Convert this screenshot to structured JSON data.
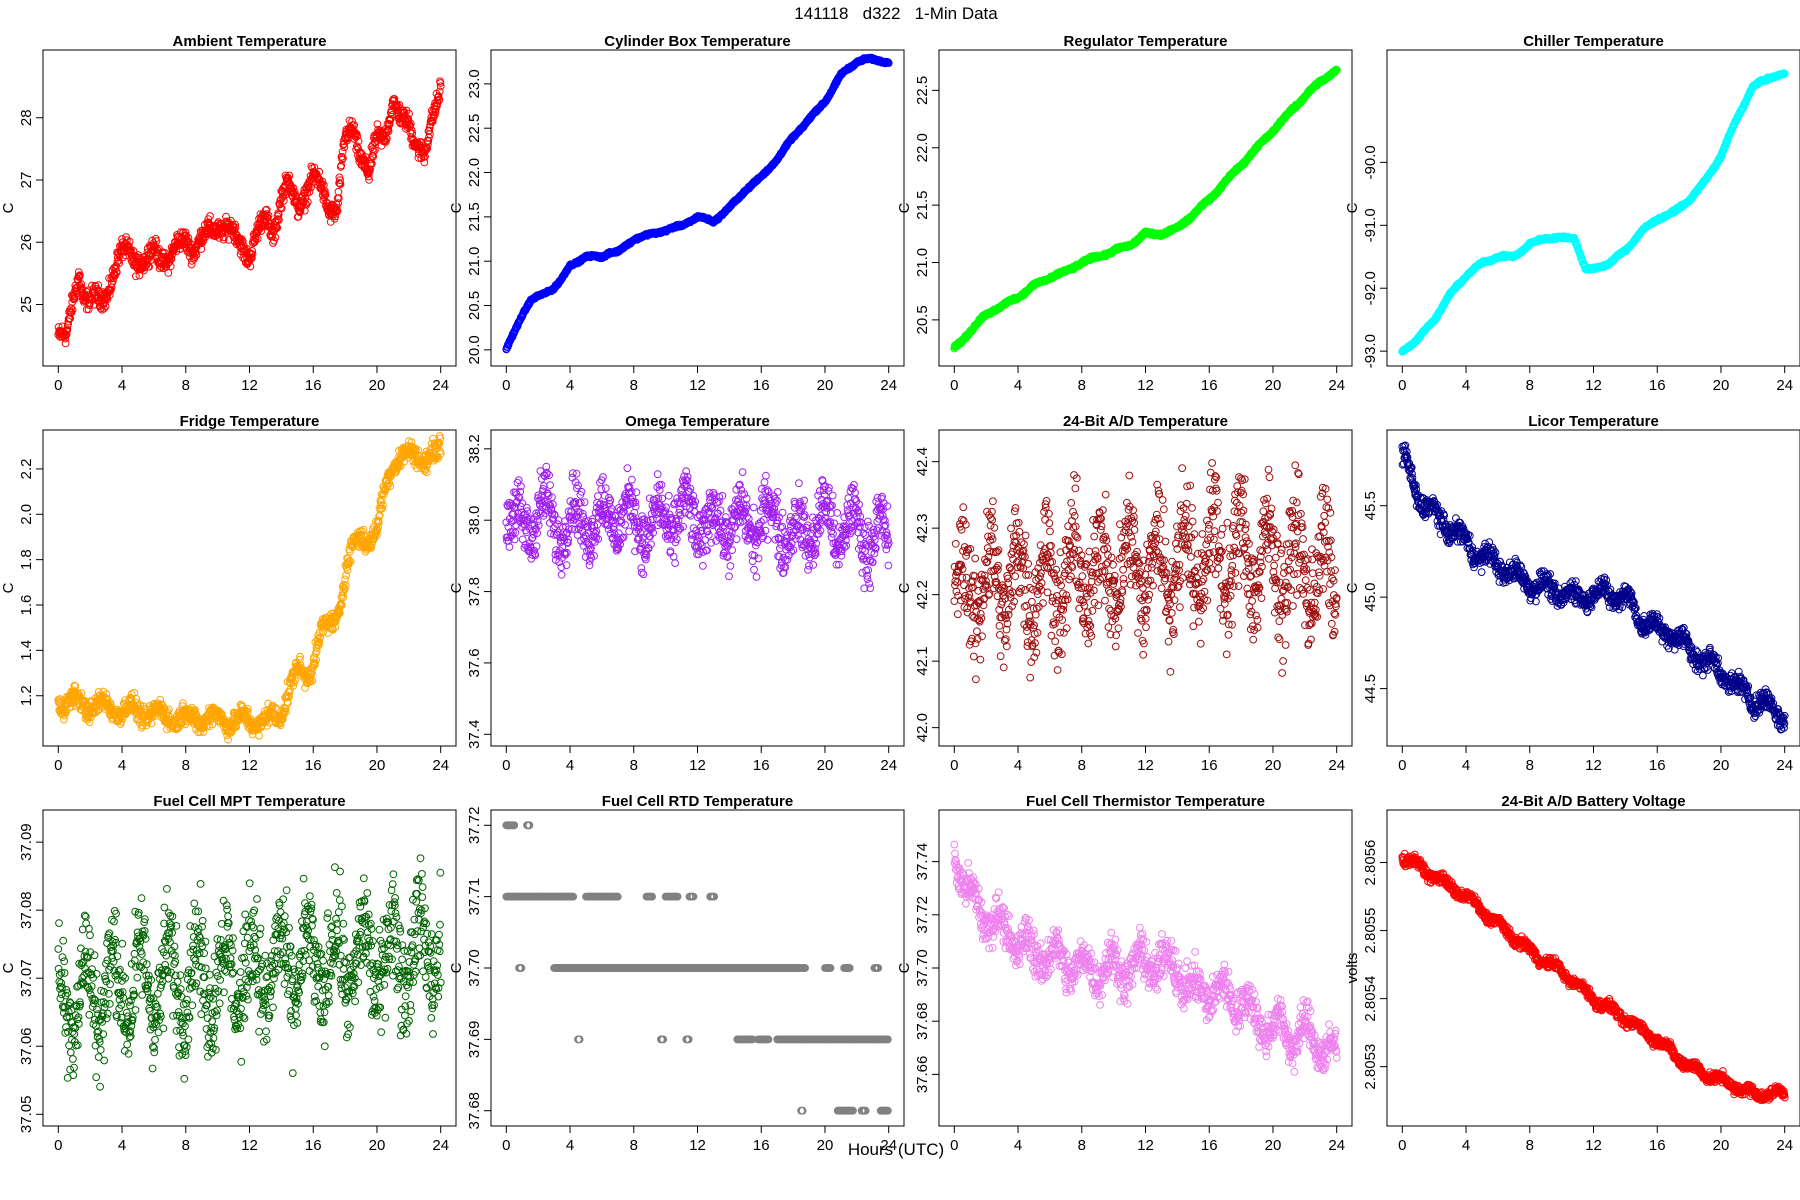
{
  "figure": {
    "title": "141118   d322   1-Min Data",
    "xlabel": "Hours (UTC)"
  },
  "chart_data": [
    {
      "type": "scatter",
      "title": "Ambient Temperature",
      "ylabel": "C",
      "color": "#ff0000",
      "xlim": [
        0,
        24
      ],
      "ylim": [
        24.2,
        28.9
      ],
      "xticks": [
        0,
        4,
        8,
        12,
        16,
        20,
        24
      ],
      "yticks": [
        25,
        26,
        27,
        28
      ],
      "ytick_labels": [
        "25",
        "26",
        "27",
        "28"
      ],
      "x": [
        0,
        0.5,
        1,
        1.3,
        1.6,
        2,
        2.5,
        3,
        3.5,
        4,
        4.5,
        5,
        5.5,
        6,
        6.5,
        7,
        7.5,
        8,
        8.5,
        9,
        9.5,
        10,
        10.5,
        11,
        11.5,
        12,
        12.5,
        13,
        13.5,
        14,
        14.5,
        15,
        15.5,
        16,
        16.5,
        17,
        17.5,
        18,
        18.5,
        19,
        19.5,
        20,
        20.5,
        21,
        21.5,
        22,
        22.5,
        23,
        23.5,
        24
      ],
      "y": [
        24.5,
        24.4,
        25.2,
        25.6,
        25.1,
        25.0,
        25.1,
        25.2,
        25.5,
        25.8,
        25.9,
        25.7,
        25.6,
        25.9,
        25.8,
        25.7,
        25.9,
        26.1,
        25.9,
        26.0,
        26.2,
        26.3,
        26.2,
        26.1,
        26.0,
        25.8,
        26.1,
        26.4,
        26.2,
        26.7,
        26.9,
        26.6,
        26.8,
        27.0,
        26.9,
        26.6,
        26.5,
        27.6,
        27.9,
        27.4,
        27.0,
        27.7,
        27.8,
        28.2,
        27.9,
        28.0,
        27.6,
        27.3,
        28.0,
        28.6
      ],
      "spread": 0.25
    },
    {
      "type": "scatter",
      "title": "Cylinder Box Temperature",
      "ylabel": "C",
      "color": "#0000ff",
      "xlim": [
        0,
        24
      ],
      "ylim": [
        19.95,
        23.25
      ],
      "xticks": [
        0,
        4,
        8,
        12,
        16,
        20,
        24
      ],
      "yticks": [
        20.0,
        20.5,
        21.0,
        21.5,
        22.0,
        22.5,
        23.0
      ],
      "ytick_labels": [
        "20.0",
        "20.5",
        "21.0",
        "21.5",
        "22.0",
        "22.5",
        "23.0"
      ],
      "x": [
        0,
        0.5,
        1,
        1.5,
        2,
        3,
        3.5,
        4,
        5,
        6,
        6.5,
        7,
        8,
        9,
        10,
        11,
        12,
        13,
        14,
        15,
        16,
        17,
        18,
        19,
        20,
        21,
        22,
        22.5,
        23,
        24
      ],
      "y": [
        20.0,
        20.2,
        20.4,
        20.55,
        20.6,
        20.7,
        20.8,
        20.95,
        21.05,
        21.05,
        21.1,
        21.1,
        21.25,
        21.3,
        21.35,
        21.4,
        21.5,
        21.45,
        21.6,
        21.8,
        21.95,
        22.15,
        22.4,
        22.6,
        22.8,
        23.1,
        23.25,
        23.28,
        23.27,
        23.25
      ],
      "spread": 0.02
    },
    {
      "type": "scatter",
      "title": "Regulator Temperature",
      "ylabel": "C",
      "color": "#00ff00",
      "xlim": [
        0,
        24
      ],
      "ylim": [
        20.2,
        22.75
      ],
      "xticks": [
        0,
        4,
        8,
        12,
        16,
        20,
        24
      ],
      "yticks": [
        20.5,
        21.0,
        21.5,
        22.0,
        22.5
      ],
      "ytick_labels": [
        "20.5",
        "21.0",
        "21.5",
        "22.0",
        "22.5"
      ],
      "x": [
        0,
        1,
        2,
        3,
        4,
        5,
        6,
        7,
        8,
        9,
        10,
        11,
        12,
        13,
        14,
        15,
        16,
        17,
        18,
        19,
        20,
        21,
        22,
        23,
        24
      ],
      "y": [
        20.25,
        20.4,
        20.55,
        20.62,
        20.7,
        20.8,
        20.87,
        20.92,
        21.0,
        21.05,
        21.1,
        21.15,
        21.25,
        21.25,
        21.3,
        21.42,
        21.55,
        21.7,
        21.85,
        22.0,
        22.15,
        22.3,
        22.45,
        22.58,
        22.68
      ],
      "spread": 0.02
    },
    {
      "type": "scatter",
      "title": "Chiller Temperature",
      "ylabel": "C",
      "color": "#00ffff",
      "xlim": [
        0,
        24
      ],
      "ylim": [
        -93.05,
        -88.4
      ],
      "xticks": [
        0,
        4,
        8,
        12,
        16,
        20,
        24
      ],
      "yticks": [
        -93.0,
        -92.0,
        -91.0,
        -90.0
      ],
      "ytick_labels": [
        "-93.0",
        "-92.0",
        "-91.0",
        "-90.0"
      ],
      "x": [
        0,
        1,
        2,
        3,
        4,
        5,
        6,
        7,
        8,
        9,
        10,
        10.8,
        11.5,
        12,
        13,
        14,
        15,
        16,
        17,
        18,
        19,
        20,
        21,
        22,
        23,
        24
      ],
      "y": [
        -93.0,
        -92.8,
        -92.5,
        -92.1,
        -91.8,
        -91.6,
        -91.5,
        -91.5,
        -91.3,
        -91.2,
        -91.2,
        -91.2,
        -91.7,
        -91.7,
        -91.6,
        -91.4,
        -91.1,
        -90.9,
        -90.8,
        -90.6,
        -90.3,
        -89.9,
        -89.3,
        -88.8,
        -88.65,
        -88.6
      ],
      "spread": 0.03
    },
    {
      "type": "scatter",
      "title": "Fridge Temperature",
      "ylabel": "C",
      "color": "#ffa500",
      "xlim": [
        0,
        24
      ],
      "ylim": [
        1.03,
        2.32
      ],
      "xticks": [
        0,
        4,
        8,
        12,
        16,
        20,
        24
      ],
      "yticks": [
        1.2,
        1.4,
        1.6,
        1.8,
        2.0,
        2.2
      ],
      "ytick_labels": [
        "1.2",
        "1.4",
        "1.6",
        "1.8",
        "2.0",
        "2.2"
      ],
      "x": [
        0,
        1,
        2,
        3,
        4,
        5,
        6,
        7,
        8,
        9,
        10,
        11,
        12,
        13,
        13.8,
        14.5,
        15,
        15.5,
        16,
        16.5,
        17,
        17.5,
        18,
        18.5,
        19,
        19.5,
        20,
        20.5,
        21,
        21.5,
        22,
        22.5,
        23,
        24
      ],
      "y": [
        1.18,
        1.17,
        1.16,
        1.15,
        1.14,
        1.13,
        1.12,
        1.11,
        1.1,
        1.1,
        1.1,
        1.09,
        1.09,
        1.09,
        1.1,
        1.24,
        1.3,
        1.28,
        1.36,
        1.48,
        1.5,
        1.56,
        1.74,
        1.85,
        1.9,
        1.9,
        1.92,
        2.1,
        2.24,
        2.26,
        2.25,
        2.26,
        2.25,
        2.27
      ],
      "spread": 0.07
    },
    {
      "type": "scatter",
      "title": "Omega Temperature",
      "ylabel": "C",
      "color": "#a020f0",
      "xlim": [
        0,
        24
      ],
      "ylim": [
        37.4,
        38.22
      ],
      "xticks": [
        0,
        4,
        8,
        12,
        16,
        20,
        24
      ],
      "yticks": [
        37.4,
        37.6,
        37.8,
        38.0,
        38.2
      ],
      "ytick_labels": [
        "37.4",
        "37.6",
        "37.8",
        "38.0",
        "38.2"
      ],
      "x": [
        0,
        1,
        2,
        3,
        4,
        5,
        6,
        7,
        8,
        9,
        10,
        11,
        12,
        13,
        14,
        15,
        16,
        17,
        18,
        19,
        20,
        21,
        22,
        23,
        24
      ],
      "y": [
        38.05,
        37.95,
        38.05,
        37.98,
        38.0,
        38.0,
        38.0,
        38.02,
        38.0,
        37.98,
        38.0,
        38.02,
        38.0,
        37.98,
        38.0,
        37.98,
        38.0,
        38.0,
        37.95,
        37.98,
        38.0,
        37.97,
        37.98,
        37.95,
        37.95
      ],
      "spread": 0.13
    },
    {
      "type": "scatter",
      "title": "24-Bit A/D Temperature",
      "ylabel": "C",
      "color": "#a01010",
      "xlim": [
        0,
        24
      ],
      "ylim": [
        41.99,
        42.43
      ],
      "xticks": [
        0,
        4,
        8,
        12,
        16,
        20,
        24
      ],
      "yticks": [
        42.0,
        42.1,
        42.2,
        42.3,
        42.4
      ],
      "ytick_labels": [
        "42.0",
        "42.1",
        "42.2",
        "42.3",
        "42.4"
      ],
      "x": [
        0,
        2,
        4,
        6,
        8,
        10,
        12,
        14,
        16,
        18,
        20,
        22,
        24
      ],
      "y": [
        42.2,
        42.22,
        42.22,
        42.22,
        42.23,
        42.24,
        42.24,
        42.25,
        42.26,
        42.26,
        42.25,
        42.24,
        42.22
      ],
      "spread": 0.13
    },
    {
      "type": "scatter",
      "title": "Licor Temperature",
      "ylabel": "C",
      "color": "#00008b",
      "xlim": [
        0,
        24
      ],
      "ylim": [
        44.25,
        45.85
      ],
      "xticks": [
        0,
        4,
        8,
        12,
        16,
        20,
        24
      ],
      "yticks": [
        44.5,
        45.0,
        45.5
      ],
      "ytick_labels": [
        "44.5",
        "45.0",
        "45.5"
      ],
      "x": [
        0,
        1,
        2,
        3,
        4,
        5,
        6,
        7,
        8,
        9,
        10,
        11,
        12,
        13,
        14,
        15,
        16,
        17,
        18,
        19,
        20,
        21,
        22,
        23,
        24
      ],
      "y": [
        45.78,
        45.55,
        45.45,
        45.38,
        45.3,
        45.22,
        45.18,
        45.12,
        45.08,
        45.05,
        45.02,
        45.0,
        45.02,
        45.02,
        45.0,
        44.88,
        44.82,
        44.8,
        44.72,
        44.65,
        44.6,
        44.5,
        44.45,
        44.4,
        44.35
      ],
      "spread": 0.09
    },
    {
      "type": "scatter",
      "title": "Fuel Cell MPT Temperature",
      "ylabel": "C",
      "color": "#006400",
      "xlim": [
        0,
        24
      ],
      "ylim": [
        37.05,
        37.093
      ],
      "xticks": [
        0,
        4,
        8,
        12,
        16,
        20,
        24
      ],
      "yticks": [
        37.05,
        37.06,
        37.07,
        37.08,
        37.09
      ],
      "ytick_labels": [
        "37.05",
        "37.06",
        "37.07",
        "37.08",
        "37.09"
      ],
      "x": [
        0,
        4,
        8,
        12,
        16,
        20,
        24
      ],
      "y": [
        37.067,
        37.069,
        37.07,
        37.071,
        37.072,
        37.073,
        37.075
      ],
      "spread": 0.012
    },
    {
      "type": "scatter",
      "title": "Fuel Cell RTD Temperature",
      "ylabel": "C",
      "color": "#808080",
      "xlim": [
        0,
        24
      ],
      "ylim": [
        37.6795,
        37.7205
      ],
      "xticks": [
        0,
        4,
        8,
        12,
        16,
        20,
        24
      ],
      "yticks": [
        37.68,
        37.69,
        37.7,
        37.71,
        37.72
      ],
      "ytick_labels": [
        "37.68",
        "37.69",
        "37.70",
        "37.71",
        "37.72"
      ],
      "discrete": [
        [
          37.72,
          0,
          0.5
        ],
        [
          37.72,
          1.3,
          1.5
        ],
        [
          37.71,
          0,
          4.2
        ],
        [
          37.71,
          5,
          7
        ],
        [
          37.71,
          8.8,
          9.2
        ],
        [
          37.71,
          10,
          10.8
        ],
        [
          37.71,
          11.5,
          11.8
        ],
        [
          37.71,
          12.8,
          13.1
        ],
        [
          37.7,
          0.8,
          1.0
        ],
        [
          37.7,
          3,
          18.8
        ],
        [
          37.7,
          20,
          20.4
        ],
        [
          37.7,
          21.2,
          21.6
        ],
        [
          37.7,
          23.1,
          23.4
        ],
        [
          37.69,
          4.5,
          4.6
        ],
        [
          37.69,
          9.7,
          9.9
        ],
        [
          37.69,
          11.3,
          11.5
        ],
        [
          37.69,
          14.5,
          15.5
        ],
        [
          37.69,
          15.8,
          16.5
        ],
        [
          37.69,
          17,
          24
        ],
        [
          37.68,
          18.5,
          18.6
        ],
        [
          37.68,
          20.8,
          21.8
        ],
        [
          37.68,
          22.3,
          22.6
        ],
        [
          37.68,
          23.5,
          24
        ]
      ]
    },
    {
      "type": "scatter",
      "title": "Fuel Cell Thermistor Temperature",
      "ylabel": "C",
      "color": "#ee82ee",
      "xlim": [
        0,
        24
      ],
      "ylim": [
        37.645,
        37.755
      ],
      "xticks": [
        0,
        4,
        8,
        12,
        16,
        20,
        24
      ],
      "yticks": [
        37.66,
        37.68,
        37.7,
        37.72,
        37.74
      ],
      "ytick_labels": [
        "37.66",
        "37.68",
        "37.70",
        "37.72",
        "37.74"
      ],
      "x": [
        0,
        1,
        2,
        3,
        4,
        5,
        6,
        7,
        8,
        9,
        10,
        11,
        12,
        13,
        14,
        15,
        16,
        17,
        18,
        19,
        20,
        21,
        22,
        23,
        24
      ],
      "y": [
        37.745,
        37.725,
        37.72,
        37.715,
        37.71,
        37.705,
        37.705,
        37.702,
        37.7,
        37.7,
        37.7,
        37.7,
        37.702,
        37.702,
        37.7,
        37.69,
        37.692,
        37.69,
        37.688,
        37.68,
        37.678,
        37.675,
        37.675,
        37.672,
        37.665
      ],
      "spread": 0.012
    },
    {
      "type": "scatter",
      "title": "24-Bit A/D Battery Voltage",
      "ylabel": "volts",
      "color": "#ff0000",
      "xlim": [
        0,
        24
      ],
      "ylim": [
        2.80523,
        2.80566
      ],
      "xticks": [
        0,
        4,
        8,
        12,
        16,
        20,
        24
      ],
      "yticks": [
        2.8053,
        2.8054,
        2.8055,
        2.8056
      ],
      "ytick_labels": [
        "2.8053",
        "2.8054",
        "2.8055",
        "2.8056"
      ],
      "x": [
        0,
        2,
        4,
        6,
        8,
        10,
        12,
        14,
        16,
        18,
        20,
        22,
        24
      ],
      "y": [
        2.80561,
        2.80558,
        2.80555,
        2.80551,
        2.80547,
        2.80544,
        2.8054,
        2.80537,
        2.80534,
        2.8053,
        2.80528,
        2.80526,
        2.80526
      ],
      "spread": 1.2e-05
    }
  ]
}
